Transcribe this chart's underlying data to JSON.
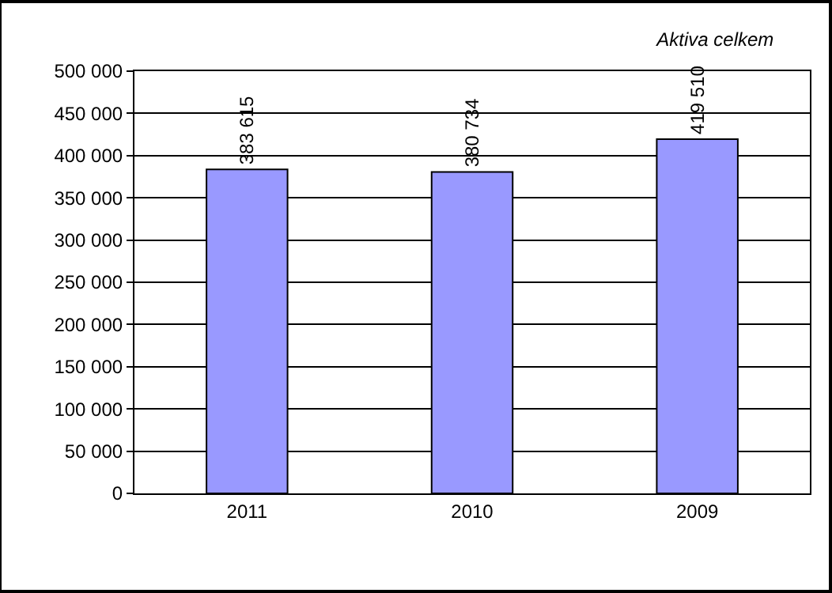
{
  "chart_data": {
    "type": "bar",
    "title": "Aktiva celkem",
    "categories": [
      "2011",
      "2010",
      "2009"
    ],
    "values": [
      383615,
      380734,
      419510
    ],
    "value_labels": [
      "383 615",
      "380 734",
      "419 510"
    ],
    "color": "#9999ff",
    "ylim": [
      0,
      500000
    ],
    "yticks": [
      {
        "value": 0,
        "label": "0"
      },
      {
        "value": 50000,
        "label": "50 000"
      },
      {
        "value": 100000,
        "label": "100 000"
      },
      {
        "value": 150000,
        "label": "150 000"
      },
      {
        "value": 200000,
        "label": "200 000"
      },
      {
        "value": 250000,
        "label": "250 000"
      },
      {
        "value": 300000,
        "label": "300 000"
      },
      {
        "value": 350000,
        "label": "350 000"
      },
      {
        "value": 400000,
        "label": "400 000"
      },
      {
        "value": 450000,
        "label": "450 000"
      },
      {
        "value": 500000,
        "label": "500 000"
      }
    ],
    "grid": "y"
  }
}
